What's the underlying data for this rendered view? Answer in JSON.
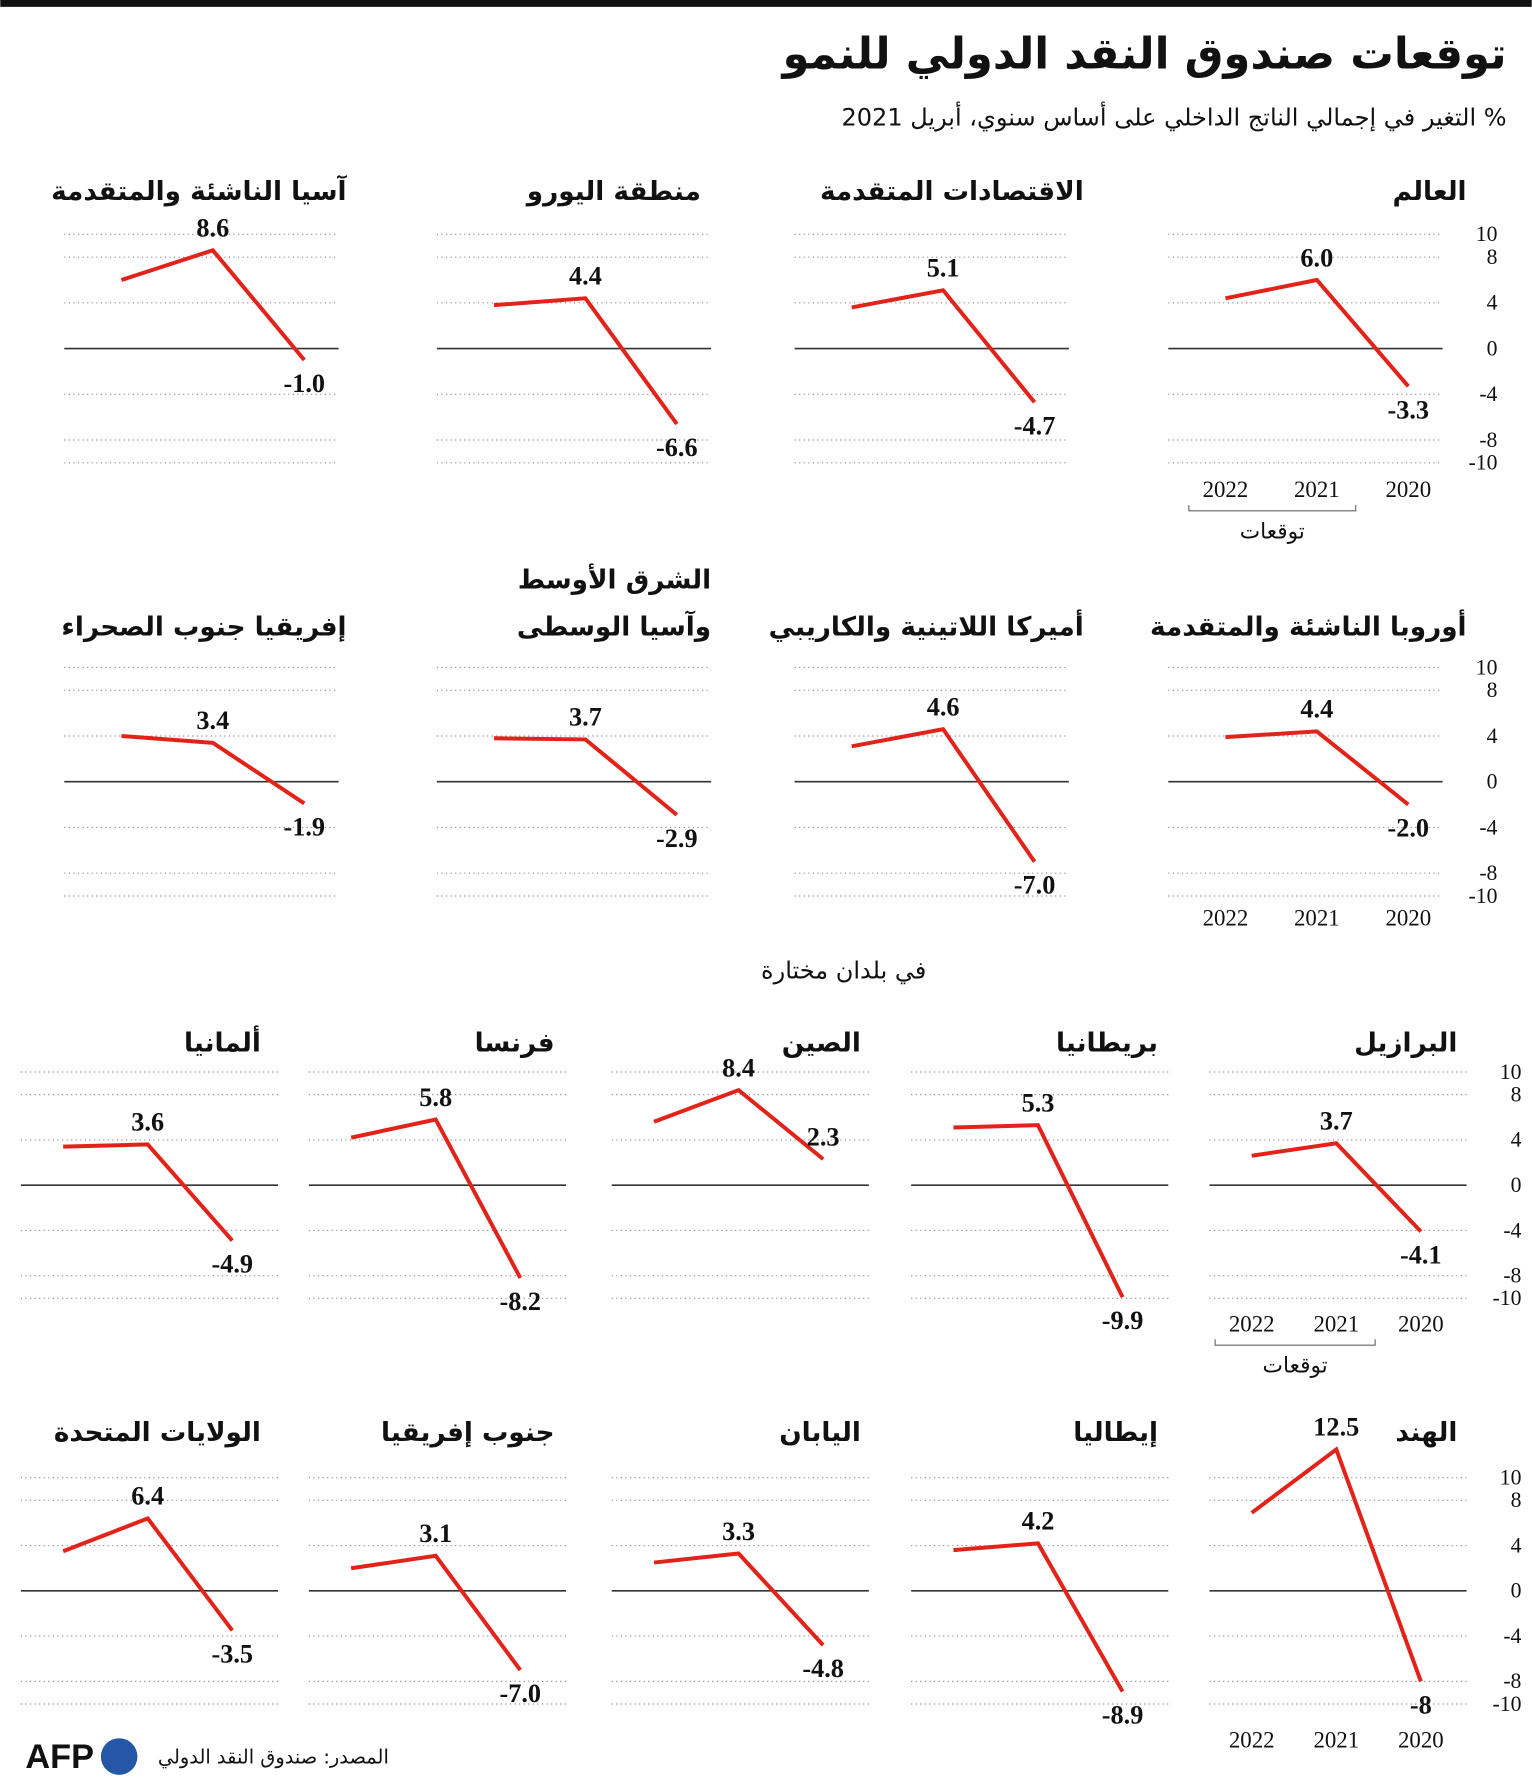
{
  "title": "توقعات صندوق النقد الدولي للنمو",
  "subtitle": "% التغير في إجمالي الناتج الداخلي على أساس سنوي، أبريل 2021",
  "section_label": "في بلدان مختارة",
  "source": "المصدر: صندوق النقد الدولي",
  "logo": "AFP",
  "chart_data": [
    {
      "type": "line",
      "title": "العالم",
      "categories": [
        "2020",
        "2021",
        "2022"
      ],
      "values": [
        -3.3,
        6.0,
        4.4
      ],
      "value_labels": [
        "-3.3",
        "6.0",
        null
      ],
      "color": "#e2231a",
      "ylim": [
        -10,
        10
      ],
      "yticks": [
        10,
        8,
        4,
        0,
        -4,
        -8,
        -10
      ],
      "show_yaxis": true,
      "show_xaxis": true,
      "forecast_label": "توقعات"
    },
    {
      "type": "line",
      "title": "الاقتصادات المتقدمة",
      "categories": [
        "2020",
        "2021",
        "2022"
      ],
      "values": [
        -4.7,
        5.1,
        3.6
      ],
      "value_labels": [
        "-4.7",
        "5.1",
        null
      ],
      "color": "#e2231a",
      "ylim": [
        -10,
        10
      ],
      "yticks": [
        10,
        8,
        4,
        0,
        -4,
        -8,
        -10
      ],
      "show_yaxis": false,
      "show_xaxis": false
    },
    {
      "type": "line",
      "title": "منطقة اليورو",
      "categories": [
        "2020",
        "2021",
        "2022"
      ],
      "values": [
        -6.6,
        4.4,
        3.8
      ],
      "value_labels": [
        "-6.6",
        "4.4",
        null
      ],
      "color": "#e2231a",
      "ylim": [
        -10,
        10
      ],
      "yticks": [
        10,
        8,
        4,
        0,
        -4,
        -8,
        -10
      ],
      "show_yaxis": false,
      "show_xaxis": false
    },
    {
      "type": "line",
      "title": "آسيا الناشئة والمتقدمة",
      "categories": [
        "2020",
        "2021",
        "2022"
      ],
      "values": [
        -1.0,
        8.6,
        6.0
      ],
      "value_labels": [
        "-1.0",
        "8.6",
        null
      ],
      "color": "#e2231a",
      "ylim": [
        -10,
        10
      ],
      "yticks": [
        10,
        8,
        4,
        0,
        -4,
        -8,
        -10
      ],
      "show_yaxis": false,
      "show_xaxis": false
    },
    {
      "type": "line",
      "title": "أوروبا الناشئة والمتقدمة",
      "categories": [
        "2020",
        "2021",
        "2022"
      ],
      "values": [
        -2.0,
        4.4,
        3.9
      ],
      "value_labels": [
        "-2.0",
        "4.4",
        null
      ],
      "color": "#e2231a",
      "ylim": [
        -10,
        10
      ],
      "yticks": [
        10,
        8,
        4,
        0,
        -4,
        -8,
        -10
      ],
      "show_yaxis": true,
      "show_xaxis": true
    },
    {
      "type": "line",
      "title": "أميركا اللاتينية والكاريبي",
      "categories": [
        "2020",
        "2021",
        "2022"
      ],
      "values": [
        -7.0,
        4.6,
        3.1
      ],
      "value_labels": [
        "-7.0",
        "4.6",
        null
      ],
      "color": "#e2231a",
      "ylim": [
        -10,
        10
      ],
      "yticks": [
        10,
        8,
        4,
        0,
        -4,
        -8,
        -10
      ],
      "show_yaxis": false,
      "show_xaxis": false
    },
    {
      "type": "line",
      "title": [
        "الشرق الأوسط",
        "وآسيا الوسطى"
      ],
      "categories": [
        "2020",
        "2021",
        "2022"
      ],
      "values": [
        -2.9,
        3.7,
        3.8
      ],
      "value_labels": [
        "-2.9",
        "3.7",
        null
      ],
      "color": "#e2231a",
      "ylim": [
        -10,
        10
      ],
      "yticks": [
        10,
        8,
        4,
        0,
        -4,
        -8,
        -10
      ],
      "show_yaxis": false,
      "show_xaxis": false
    },
    {
      "type": "line",
      "title": "إفريقيا جنوب الصحراء",
      "categories": [
        "2020",
        "2021",
        "2022"
      ],
      "values": [
        -1.9,
        3.4,
        4.0
      ],
      "value_labels": [
        "-1.9",
        "3.4",
        null
      ],
      "color": "#e2231a",
      "ylim": [
        -10,
        10
      ],
      "yticks": [
        10,
        8,
        4,
        0,
        -4,
        -8,
        -10
      ],
      "show_yaxis": false,
      "show_xaxis": false
    },
    {
      "type": "line",
      "title": "البرازيل",
      "categories": [
        "2020",
        "2021",
        "2022"
      ],
      "values": [
        -4.1,
        3.7,
        2.6
      ],
      "value_labels": [
        "-4.1",
        "3.7",
        null
      ],
      "color": "#e2231a",
      "ylim": [
        -10,
        10
      ],
      "yticks": [
        10,
        8,
        4,
        0,
        -4,
        -8,
        -10
      ],
      "show_yaxis": true,
      "show_xaxis": true,
      "forecast_label": "توقعات"
    },
    {
      "type": "line",
      "title": "بريطانيا",
      "categories": [
        "2020",
        "2021",
        "2022"
      ],
      "values": [
        -9.9,
        5.3,
        5.1
      ],
      "value_labels": [
        "-9.9",
        "5.3",
        null
      ],
      "color": "#e2231a",
      "ylim": [
        -10,
        10
      ],
      "yticks": [
        10,
        8,
        4,
        0,
        -4,
        -8,
        -10
      ],
      "show_yaxis": false,
      "show_xaxis": false
    },
    {
      "type": "line",
      "title": "الصين",
      "categories": [
        "2020",
        "2021",
        "2022"
      ],
      "values": [
        2.3,
        8.4,
        5.6
      ],
      "value_labels": [
        "2.3",
        "8.4",
        null
      ],
      "color": "#e2231a",
      "ylim": [
        -10,
        10
      ],
      "yticks": [
        10,
        8,
        4,
        0,
        -4,
        -8,
        -10
      ],
      "show_yaxis": false,
      "show_xaxis": false
    },
    {
      "type": "line",
      "title": "فرنسا",
      "categories": [
        "2020",
        "2021",
        "2022"
      ],
      "values": [
        -8.2,
        5.8,
        4.2
      ],
      "value_labels": [
        "-8.2",
        "5.8",
        null
      ],
      "color": "#e2231a",
      "ylim": [
        -10,
        10
      ],
      "yticks": [
        10,
        8,
        4,
        0,
        -4,
        -8,
        -10
      ],
      "show_yaxis": false,
      "show_xaxis": false
    },
    {
      "type": "line",
      "title": "ألمانيا",
      "categories": [
        "2020",
        "2021",
        "2022"
      ],
      "values": [
        -4.9,
        3.6,
        3.4
      ],
      "value_labels": [
        "-4.9",
        "3.6",
        null
      ],
      "color": "#e2231a",
      "ylim": [
        -10,
        10
      ],
      "yticks": [
        10,
        8,
        4,
        0,
        -4,
        -8,
        -10
      ],
      "show_yaxis": false,
      "show_xaxis": false
    },
    {
      "type": "line",
      "title": "الهند",
      "categories": [
        "2020",
        "2021",
        "2022"
      ],
      "values": [
        -8,
        12.5,
        6.9
      ],
      "value_labels": [
        "-8",
        "12.5",
        null
      ],
      "color": "#e2231a",
      "ylim": [
        -10,
        10
      ],
      "yticks": [
        10,
        8,
        4,
        0,
        -4,
        -8,
        -10
      ],
      "show_yaxis": true,
      "show_xaxis": true
    },
    {
      "type": "line",
      "title": "إيطاليا",
      "categories": [
        "2020",
        "2021",
        "2022"
      ],
      "values": [
        -8.9,
        4.2,
        3.6
      ],
      "value_labels": [
        "-8.9",
        "4.2",
        null
      ],
      "color": "#e2231a",
      "ylim": [
        -10,
        10
      ],
      "yticks": [
        10,
        8,
        4,
        0,
        -4,
        -8,
        -10
      ],
      "show_yaxis": false,
      "show_xaxis": false
    },
    {
      "type": "line",
      "title": "اليابان",
      "categories": [
        "2020",
        "2021",
        "2022"
      ],
      "values": [
        -4.8,
        3.3,
        2.5
      ],
      "value_labels": [
        "-4.8",
        "3.3",
        null
      ],
      "color": "#e2231a",
      "ylim": [
        -10,
        10
      ],
      "yticks": [
        10,
        8,
        4,
        0,
        -4,
        -8,
        -10
      ],
      "show_yaxis": false,
      "show_xaxis": false
    },
    {
      "type": "line",
      "title": "جنوب إفريقيا",
      "categories": [
        "2020",
        "2021",
        "2022"
      ],
      "values": [
        -7.0,
        3.1,
        2.0
      ],
      "value_labels": [
        "-7.0",
        "3.1",
        null
      ],
      "color": "#e2231a",
      "ylim": [
        -10,
        10
      ],
      "yticks": [
        10,
        8,
        4,
        0,
        -4,
        -8,
        -10
      ],
      "show_yaxis": false,
      "show_xaxis": false
    },
    {
      "type": "line",
      "title": "الولايات المتحدة",
      "categories": [
        "2020",
        "2021",
        "2022"
      ],
      "values": [
        -3.5,
        6.4,
        3.5
      ],
      "value_labels": [
        "-3.5",
        "6.4",
        null
      ],
      "color": "#e2231a",
      "ylim": [
        -10,
        10
      ],
      "yticks": [
        10,
        8,
        4,
        0,
        -4,
        -8,
        -10
      ],
      "show_yaxis": false,
      "show_xaxis": false
    }
  ]
}
